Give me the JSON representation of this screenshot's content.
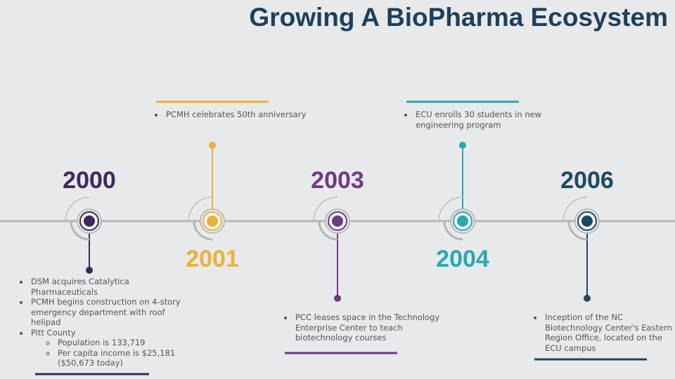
{
  "title": "Growing A BioPharma Ecosystem",
  "milestones": [
    {
      "year": "2000",
      "color": "#3b2a5a",
      "position": "above",
      "bullets": [
        {
          "text": "DSM acquires Catalytica Pharmaceuticals"
        },
        {
          "text": "PCMH begins construction on 4-story emergency department with roof helipad"
        },
        {
          "text": "Pitt County",
          "sub": [
            "Population is 133,719",
            "Per capita income is $25,181 ($50,673 today)"
          ]
        }
      ]
    },
    {
      "year": "2001",
      "color": "#e8b339",
      "position": "below",
      "bullets": [
        {
          "text": "PCMH celebrates 50th anniversary"
        }
      ]
    },
    {
      "year": "2003",
      "color": "#6e3c80",
      "position": "above",
      "bullets": [
        {
          "text": "PCC leases space in the Technology Enterprise Center to teach biotechnology courses"
        }
      ]
    },
    {
      "year": "2004",
      "color": "#2aa8b0",
      "position": "below",
      "bullets": [
        {
          "text": "ECU enrolls 30 students in new engineering program"
        }
      ]
    },
    {
      "year": "2006",
      "color": "#1e4863",
      "position": "above",
      "bullets": [
        {
          "text": "Inception of the NC Biotechnology Center's Eastern Region Office, located on the ECU campus"
        }
      ]
    }
  ]
}
